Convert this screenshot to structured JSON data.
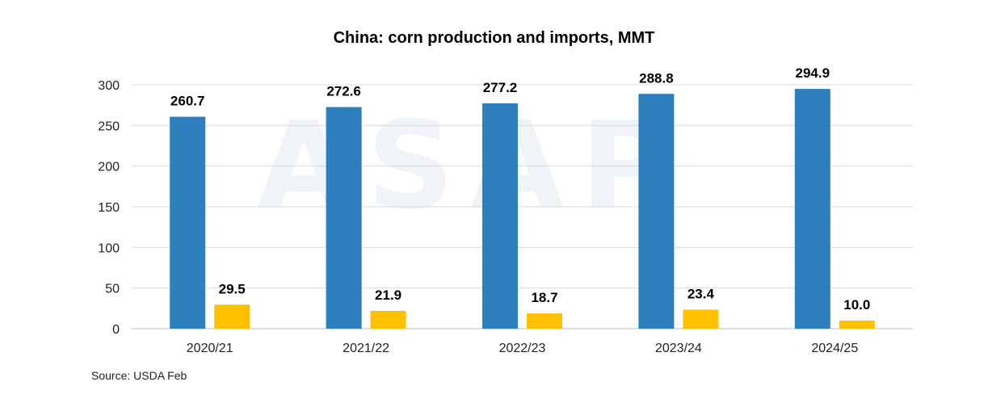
{
  "chart_data": {
    "type": "bar",
    "title": "China: corn production and imports, MMT",
    "categories": [
      "2020/21",
      "2021/22",
      "2022/23",
      "2023/24",
      "2024/25"
    ],
    "series": [
      {
        "values": [
          260.7,
          272.6,
          277.2,
          288.8,
          294.9
        ],
        "color": "#2e7fbe"
      },
      {
        "values": [
          29.5,
          21.9,
          18.7,
          23.4,
          10.0
        ],
        "color": "#ffc000"
      }
    ],
    "value_labels": [
      [
        "260.7",
        "272.6",
        "277.2",
        "288.8",
        "294.9"
      ],
      [
        "29.5",
        "21.9",
        "18.7",
        "23.4",
        "10.0"
      ]
    ],
    "ylim": [
      0,
      300
    ],
    "yticks": [
      0,
      50,
      100,
      150,
      200,
      250,
      300
    ],
    "grid": true,
    "legend": "none"
  },
  "source": "Source: USDA Feb",
  "watermark": "ASAP"
}
